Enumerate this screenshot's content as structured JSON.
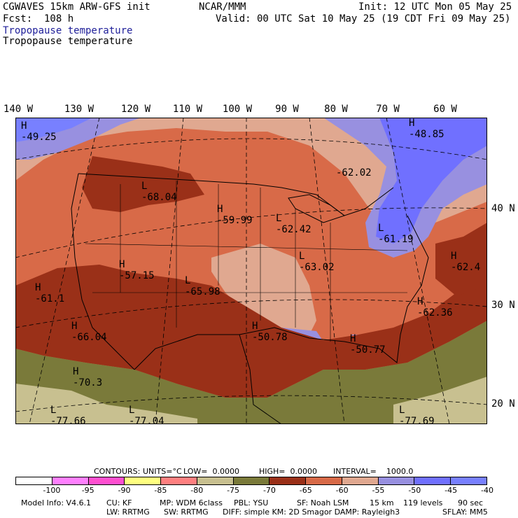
{
  "header": {
    "model": "CGWAVES 15km ARW-GFS init",
    "center": "NCAR/MMM",
    "init": "Init: 12 UTC Mon 05 May 25",
    "fcst": "Fcst:  108 h",
    "valid": "Valid: 00 UTC Sat 10 May 25 (19 CDT Fri 09 May 25)",
    "field_title_1": "Tropopause temperature",
    "field_title_2": "Tropopause temperature"
  },
  "lon_labels": [
    "140 W",
    "130 W",
    "120 W",
    "110 W",
    "100 W",
    "90 W",
    "80 W",
    "70 W",
    "60 W"
  ],
  "lat_labels": [
    "40 N",
    "30 N",
    "20 N"
  ],
  "extrema": [
    {
      "type": "H",
      "value": "-49.25"
    },
    {
      "type": "H",
      "value": "-48.85"
    },
    {
      "type": "",
      "value": "-62.02"
    },
    {
      "type": "L",
      "value": "-68.04"
    },
    {
      "type": "H",
      "value": "-59.99"
    },
    {
      "type": "L",
      "value": "-62.42"
    },
    {
      "type": "L",
      "value": "-61.19"
    },
    {
      "type": "H",
      "value": "-57.15"
    },
    {
      "type": "L",
      "value": "-65.98"
    },
    {
      "type": "L",
      "value": "-63.02"
    },
    {
      "type": "H",
      "value": "-62.4"
    },
    {
      "type": "H",
      "value": "-61.1"
    },
    {
      "type": "H",
      "value": "-62.36"
    },
    {
      "type": "H",
      "value": "-66.04"
    },
    {
      "type": "H",
      "value": "-50.78"
    },
    {
      "type": "H",
      "value": "-50.77"
    },
    {
      "type": "H",
      "value": "-70.3"
    },
    {
      "type": "L",
      "value": "-77.66"
    },
    {
      "type": "L",
      "value": "-77.04"
    },
    {
      "type": "L",
      "value": "-77.69"
    }
  ],
  "contour_info": {
    "contours": "CONTOURS:",
    "units": "UNITS=°C",
    "low": "LOW=  0.0000",
    "high": "HIGH=  0.0000",
    "interval": "INTERVAL=    1000.0"
  },
  "colorbar": {
    "colors": [
      "#ffffff",
      "#ff80ff",
      "#ff50d0",
      "#ffff80",
      "#ff8080",
      "#c8c090",
      "#7a7a3a",
      "#9a3018",
      "#d86a48",
      "#e0a890",
      "#9890e0",
      "#7070ff",
      "#7880ff"
    ],
    "ticks": [
      "-100",
      "-95",
      "-90",
      "-85",
      "-80",
      "-75",
      "-70",
      "-65",
      "-60",
      "-55",
      "-50",
      "-45",
      "-40",
      "°C"
    ]
  },
  "model_info": {
    "line1_a": "Model Info: V4.6.1",
    "line1_b": "CU: KF",
    "line1_c": "MP: WDM 6class",
    "line1_d": "PBL: YSU",
    "line1_e": "SF: Noah LSM",
    "line1_f": "15 km",
    "line1_g": "119 levels",
    "line1_h": "90 sec",
    "line2_a": "LW: RRTMG",
    "line2_b": "SW: RRTMG",
    "line2_c": "DIFF: simple KM: 2D Smagor DAMP: Rayleigh3",
    "line2_d": "SFLAY: MM5"
  }
}
